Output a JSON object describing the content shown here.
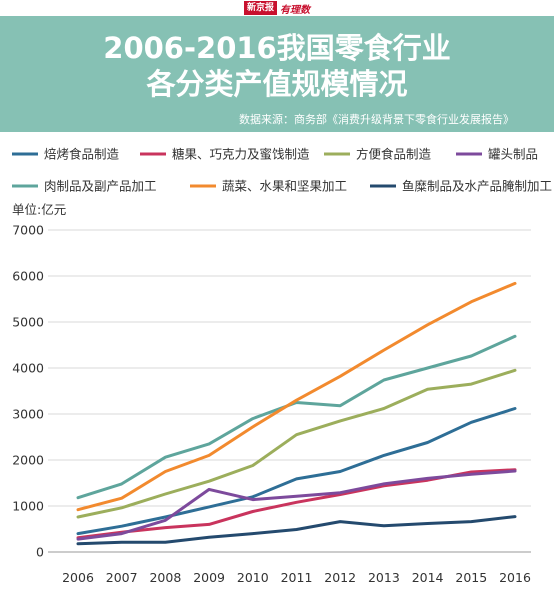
{
  "brand": {
    "name": "新京报",
    "sub": "有理数"
  },
  "title_line1": "2006-2016我国零食行业",
  "title_line2": "各分类产值规模情况",
  "source": "数据来源：商务部《消费升级背景下零食行业发展报告》",
  "colors": {
    "header_bg": "#86c1b4",
    "grid": "#d9d9d9"
  },
  "chart_data": {
    "type": "line",
    "title": "2006-2016我国零食行业各分类产值规模情况",
    "ylabel": "单位:亿元",
    "xlabel": "",
    "ylim": [
      0,
      7000
    ],
    "yticks": [
      "0",
      "1000",
      "2000",
      "3000",
      "4000",
      "5000",
      "6000",
      "7000"
    ],
    "x": [
      "2006",
      "2007",
      "2008",
      "2009",
      "2010",
      "2011",
      "2012",
      "2013",
      "2014",
      "2015",
      "2016"
    ],
    "grid": true,
    "legend_position": "top",
    "series": [
      {
        "name": "焙烤食品制造",
        "color": "#2e6e96",
        "values": [
          400,
          560,
          760,
          980,
          1200,
          1590,
          1750,
          2100,
          2380,
          2820,
          3120
        ]
      },
      {
        "name": "糖果、巧克力及蜜饯制造",
        "color": "#c9345d",
        "values": [
          310,
          430,
          530,
          600,
          880,
          1080,
          1250,
          1440,
          1560,
          1740,
          1790
        ]
      },
      {
        "name": "方便食品制造",
        "color": "#9cae5c",
        "values": [
          760,
          960,
          1260,
          1540,
          1880,
          2550,
          2850,
          3120,
          3540,
          3650,
          3950
        ]
      },
      {
        "name": "罐头制品",
        "color": "#7d4a9c",
        "values": [
          280,
          400,
          690,
          1360,
          1140,
          1210,
          1290,
          1480,
          1600,
          1690,
          1760
        ]
      },
      {
        "name": "肉制品及副产品加工",
        "color": "#5ea59c",
        "values": [
          1180,
          1480,
          2060,
          2350,
          2900,
          3250,
          3180,
          3740,
          4000,
          4260,
          4690
        ]
      },
      {
        "name": "蔬菜、水果和坚果加工",
        "color": "#f28a2e",
        "values": [
          920,
          1170,
          1750,
          2100,
          2720,
          3300,
          3820,
          4390,
          4940,
          5440,
          5840
        ]
      },
      {
        "name": "鱼糜制品及水产品腌制加工",
        "color": "#244a6e",
        "values": [
          180,
          210,
          210,
          320,
          400,
          490,
          660,
          570,
          620,
          660,
          770
        ]
      }
    ]
  }
}
